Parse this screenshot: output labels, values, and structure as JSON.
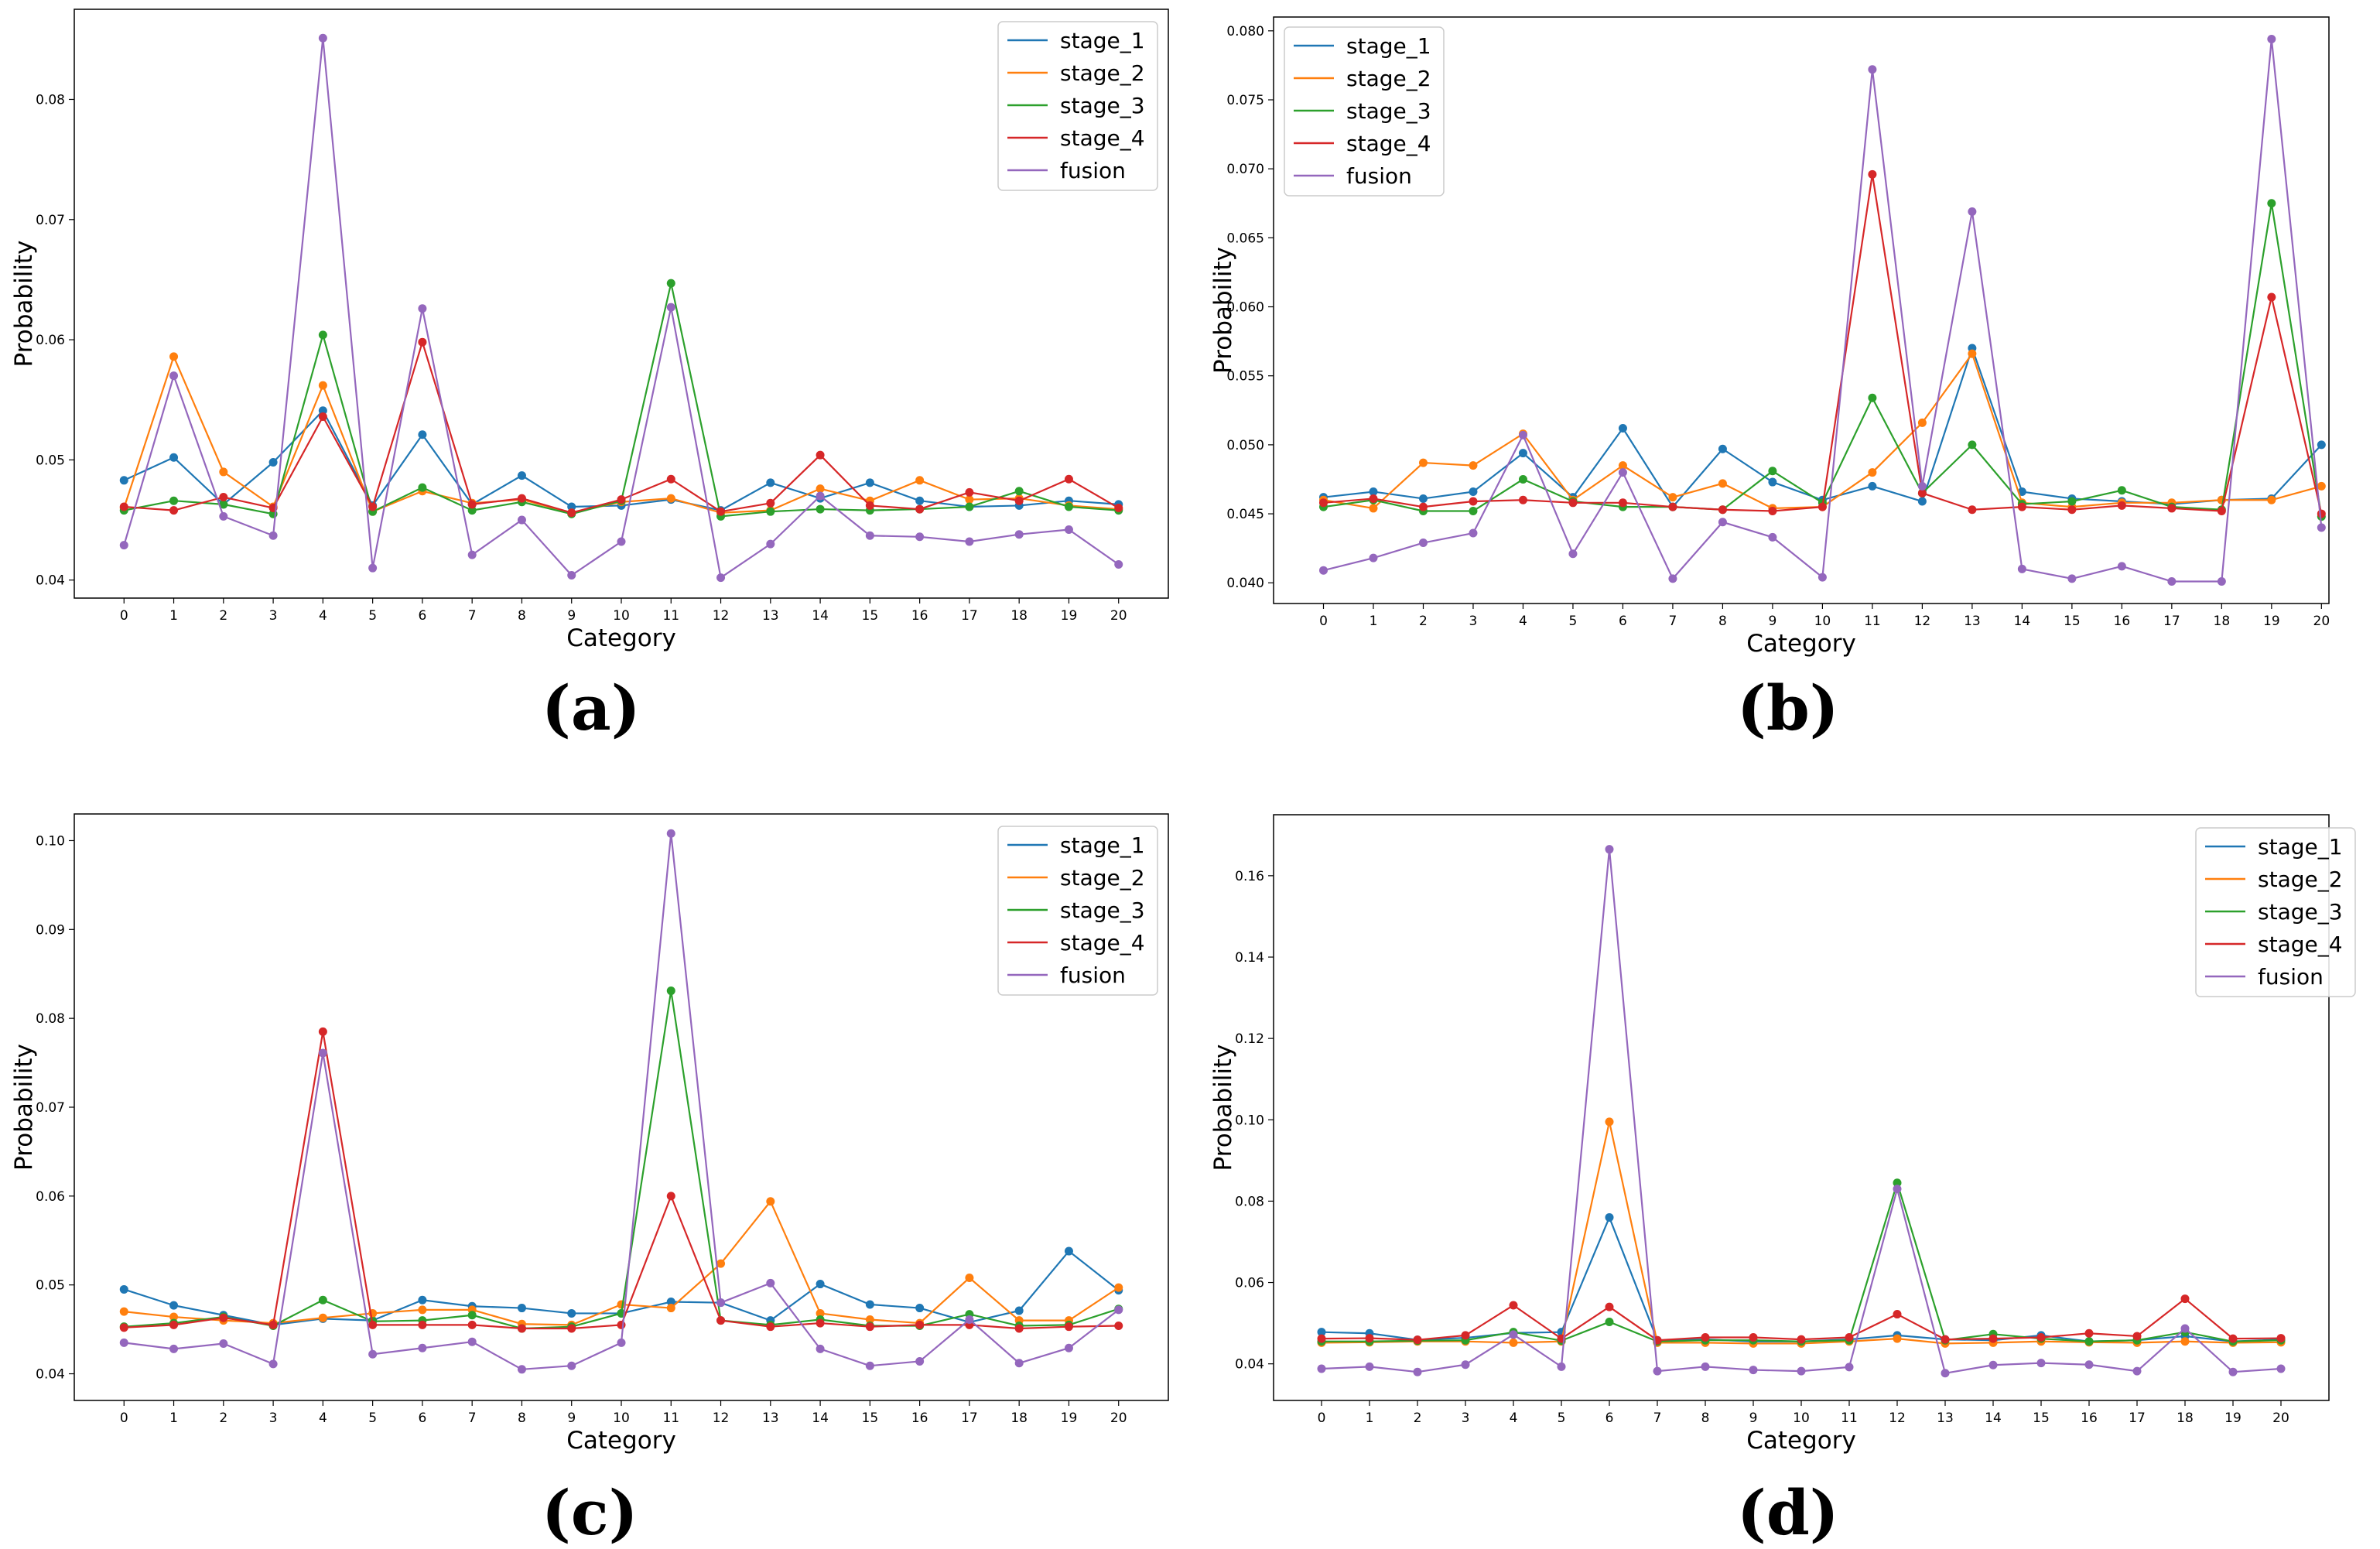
{
  "colors": {
    "stage_1": "#1f77b4",
    "stage_2": "#ff7f0e",
    "stage_3": "#2ca02c",
    "stage_4": "#d62728",
    "fusion": "#9467bd"
  },
  "chart_data": [
    {
      "type": "line",
      "panel": "(a)",
      "xlabel": "Category",
      "ylabel": "Probability",
      "x": [
        0,
        1,
        2,
        3,
        4,
        5,
        6,
        7,
        8,
        9,
        10,
        11,
        12,
        13,
        14,
        15,
        16,
        17,
        18,
        19,
        20
      ],
      "xlim": [
        -1,
        21
      ],
      "ylim": [
        0.0385,
        0.0875
      ],
      "yticks": [
        "0.04",
        "0.05",
        "0.06",
        "0.07",
        "0.08"
      ],
      "legend_loc": "upper right",
      "series": [
        {
          "name": "stage_1",
          "values": [
            0.0483,
            0.0502,
            0.0463,
            0.0498,
            0.0541,
            0.0462,
            0.0521,
            0.0463,
            0.0487,
            0.0461,
            0.0462,
            0.0467,
            0.0458,
            0.0481,
            0.0468,
            0.0481,
            0.0466,
            0.0461,
            0.0462,
            0.0466,
            0.0463
          ]
        },
        {
          "name": "stage_2",
          "values": [
            0.046,
            0.0586,
            0.049,
            0.0461,
            0.0562,
            0.0457,
            0.0474,
            0.0464,
            0.0467,
            0.0456,
            0.0465,
            0.0468,
            0.0456,
            0.0458,
            0.0476,
            0.0466,
            0.0483,
            0.0467,
            0.0468,
            0.0462,
            0.0459
          ]
        },
        {
          "name": "stage_3",
          "values": [
            0.0458,
            0.0466,
            0.0463,
            0.0455,
            0.0604,
            0.0457,
            0.0477,
            0.0458,
            0.0465,
            0.0455,
            0.0466,
            0.0647,
            0.0453,
            0.0457,
            0.0459,
            0.0458,
            0.0459,
            0.0461,
            0.0474,
            0.0461,
            0.0458
          ]
        },
        {
          "name": "stage_4",
          "values": [
            0.0461,
            0.0458,
            0.0469,
            0.046,
            0.0536,
            0.0461,
            0.0598,
            0.0463,
            0.0468,
            0.0456,
            0.0467,
            0.0484,
            0.0457,
            0.0464,
            0.0504,
            0.0462,
            0.0459,
            0.0473,
            0.0466,
            0.0484,
            0.046
          ]
        },
        {
          "name": "fusion",
          "values": [
            0.0429,
            0.057,
            0.0453,
            0.0437,
            0.0851,
            0.041,
            0.0626,
            0.0421,
            0.045,
            0.0404,
            0.0432,
            0.0627,
            0.0402,
            0.043,
            0.047,
            0.0437,
            0.0436,
            0.0432,
            0.0438,
            0.0442,
            0.0413
          ]
        }
      ]
    },
    {
      "type": "line",
      "panel": "(b)",
      "xlabel": "Category",
      "ylabel": "Probability",
      "x": [
        0,
        1,
        2,
        3,
        4,
        5,
        6,
        7,
        8,
        9,
        10,
        11,
        12,
        13,
        14,
        15,
        16,
        17,
        18,
        19,
        20
      ],
      "xlim": [
        -1,
        20.15
      ],
      "ylim": [
        0.0385,
        0.081
      ],
      "yticks": [
        "0.040",
        "0.045",
        "0.050",
        "0.055",
        "0.060",
        "0.065",
        "0.070",
        "0.075",
        "0.080"
      ],
      "legend_loc": "upper left",
      "series": [
        {
          "name": "stage_1",
          "values": [
            0.0462,
            0.0466,
            0.0461,
            0.0466,
            0.0494,
            0.0462,
            0.0512,
            0.0455,
            0.0497,
            0.0473,
            0.046,
            0.047,
            0.0459,
            0.057,
            0.0466,
            0.0461,
            0.0459,
            0.0457,
            0.046,
            0.0461,
            0.05
          ]
        },
        {
          "name": "stage_2",
          "values": [
            0.046,
            0.0454,
            0.0487,
            0.0485,
            0.0508,
            0.046,
            0.0485,
            0.0462,
            0.0472,
            0.0454,
            0.0455,
            0.048,
            0.0516,
            0.0566,
            0.0458,
            0.0455,
            0.0458,
            0.0458,
            0.046,
            0.046,
            0.047
          ]
        },
        {
          "name": "stage_3",
          "values": [
            0.0455,
            0.046,
            0.0452,
            0.0452,
            0.0475,
            0.0459,
            0.0455,
            0.0455,
            0.0453,
            0.0481,
            0.0458,
            0.0534,
            0.0465,
            0.05,
            0.0457,
            0.0459,
            0.0467,
            0.0455,
            0.0453,
            0.0675,
            0.0448
          ]
        },
        {
          "name": "stage_4",
          "values": [
            0.0458,
            0.0461,
            0.0455,
            0.0459,
            0.046,
            0.0458,
            0.0458,
            0.0455,
            0.0453,
            0.0452,
            0.0455,
            0.0696,
            0.0465,
            0.0453,
            0.0455,
            0.0453,
            0.0456,
            0.0454,
            0.0452,
            0.0607,
            0.045
          ]
        },
        {
          "name": "fusion",
          "values": [
            0.0409,
            0.0418,
            0.0429,
            0.0436,
            0.0507,
            0.0421,
            0.048,
            0.0403,
            0.0444,
            0.0433,
            0.0404,
            0.0772,
            0.047,
            0.0669,
            0.041,
            0.0403,
            0.0412,
            0.0401,
            0.0401,
            0.0794,
            0.044
          ]
        }
      ]
    },
    {
      "type": "line",
      "panel": "(c)",
      "xlabel": "Category",
      "ylabel": "Probability",
      "x": [
        0,
        1,
        2,
        3,
        4,
        5,
        6,
        7,
        8,
        9,
        10,
        11,
        12,
        13,
        14,
        15,
        16,
        17,
        18,
        19,
        20
      ],
      "xlim": [
        -1,
        21
      ],
      "ylim": [
        0.037,
        0.103
      ],
      "yticks": [
        "0.04",
        "0.05",
        "0.06",
        "0.07",
        "0.08",
        "0.09",
        "0.10"
      ],
      "legend_loc": "upper right",
      "series": [
        {
          "name": "stage_1",
          "values": [
            0.0495,
            0.0477,
            0.0466,
            0.0455,
            0.0462,
            0.046,
            0.0483,
            0.0476,
            0.0474,
            0.0468,
            0.0468,
            0.0481,
            0.048,
            0.046,
            0.0501,
            0.0478,
            0.0474,
            0.0458,
            0.0471,
            0.0538,
            0.0494
          ]
        },
        {
          "name": "stage_2",
          "values": [
            0.047,
            0.0464,
            0.046,
            0.0457,
            0.0463,
            0.0468,
            0.0472,
            0.0472,
            0.0456,
            0.0455,
            0.0478,
            0.0474,
            0.0524,
            0.0594,
            0.0468,
            0.0461,
            0.0457,
            0.0508,
            0.046,
            0.046,
            0.0497
          ]
        },
        {
          "name": "stage_3",
          "values": [
            0.0453,
            0.0457,
            0.0464,
            0.0454,
            0.0483,
            0.0459,
            0.046,
            0.0466,
            0.0451,
            0.0453,
            0.0468,
            0.0831,
            0.046,
            0.0455,
            0.0461,
            0.0454,
            0.0454,
            0.0467,
            0.0454,
            0.0455,
            0.0473
          ]
        },
        {
          "name": "stage_4",
          "values": [
            0.0452,
            0.0455,
            0.0463,
            0.0455,
            0.0785,
            0.0455,
            0.0455,
            0.0455,
            0.0451,
            0.0451,
            0.0455,
            0.06,
            0.046,
            0.0453,
            0.0457,
            0.0453,
            0.0455,
            0.0455,
            0.0451,
            0.0453,
            0.0454
          ]
        },
        {
          "name": "fusion",
          "values": [
            0.0435,
            0.0428,
            0.0434,
            0.0411,
            0.0761,
            0.0422,
            0.0429,
            0.0436,
            0.0405,
            0.0409,
            0.0435,
            0.1008,
            0.048,
            0.0502,
            0.0428,
            0.0409,
            0.0414,
            0.0461,
            0.0412,
            0.0429,
            0.0472
          ]
        }
      ]
    },
    {
      "type": "line",
      "panel": "(d)",
      "xlabel": "Category",
      "ylabel": "Probability",
      "x": [
        0,
        1,
        2,
        3,
        4,
        5,
        6,
        7,
        8,
        9,
        10,
        11,
        12,
        13,
        14,
        15,
        16,
        17,
        18,
        19,
        20
      ],
      "xlim": [
        -1,
        21
      ],
      "ylim": [
        0.031,
        0.175
      ],
      "yticks": [
        "0.04",
        "0.06",
        "0.08",
        "0.10",
        "0.12",
        "0.14",
        "0.16"
      ],
      "legend_loc": "upper right",
      "series": [
        {
          "name": "stage_1",
          "values": [
            0.0478,
            0.0475,
            0.0459,
            0.0464,
            0.0476,
            0.0478,
            0.076,
            0.0458,
            0.046,
            0.0455,
            0.0455,
            0.046,
            0.047,
            0.046,
            0.0458,
            0.047,
            0.0455,
            0.0458,
            0.0468,
            0.0455,
            0.046
          ]
        },
        {
          "name": "stage_2",
          "values": [
            0.0452,
            0.0453,
            0.0455,
            0.0455,
            0.0452,
            0.0455,
            0.0995,
            0.0452,
            0.0452,
            0.045,
            0.045,
            0.0455,
            0.0462,
            0.045,
            0.0452,
            0.0455,
            0.0453,
            0.0452,
            0.0455,
            0.0452,
            0.0453
          ]
        },
        {
          "name": "stage_3",
          "values": [
            0.0455,
            0.0455,
            0.0457,
            0.0458,
            0.0478,
            0.0457,
            0.0503,
            0.0455,
            0.0458,
            0.0458,
            0.0455,
            0.0458,
            0.0845,
            0.0458,
            0.0473,
            0.0462,
            0.0455,
            0.0458,
            0.0478,
            0.0455,
            0.0458
          ]
        },
        {
          "name": "stage_4",
          "values": [
            0.0462,
            0.0463,
            0.0459,
            0.047,
            0.0544,
            0.0462,
            0.054,
            0.0458,
            0.0465,
            0.0465,
            0.046,
            0.0465,
            0.0522,
            0.046,
            0.0462,
            0.0465,
            0.0475,
            0.0468,
            0.056,
            0.0462,
            0.0463
          ]
        },
        {
          "name": "fusion",
          "values": [
            0.0388,
            0.0393,
            0.038,
            0.0398,
            0.0472,
            0.0393,
            0.1665,
            0.0382,
            0.0393,
            0.0385,
            0.0382,
            0.0392,
            0.083,
            0.0377,
            0.0397,
            0.0402,
            0.0398,
            0.0382,
            0.0487,
            0.038,
            0.0388
          ]
        }
      ]
    }
  ]
}
